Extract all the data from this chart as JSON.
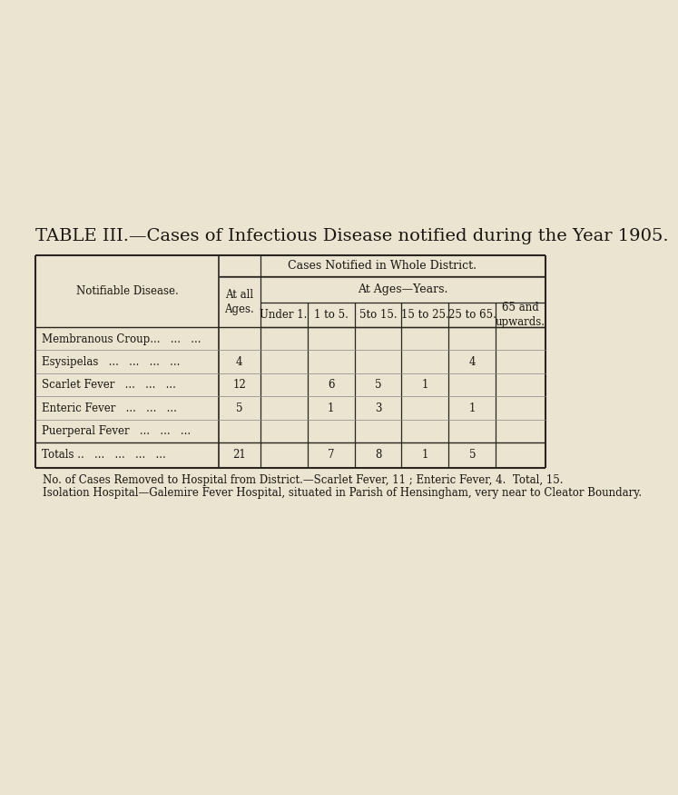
{
  "title": "TABLE III.—Cases of Infectious Disease notified during the Year 1905.",
  "title_fontsize": 14,
  "bg_color": "#EAE4D0",
  "header1": "Cases Notified in Whole District.",
  "header_disease": "Notifiable Disease.",
  "header_at_all": "At all\nAges.",
  "header_ages": "At Ages—Years.",
  "age_headers": [
    "Under 1.",
    "1 to 5.",
    "5to 15.",
    "15 to 25.",
    "25 to 65.",
    "65 and\nupwards."
  ],
  "diseases": [
    "Membranous Croup...",
    "Esysipelas",
    "Scarlet Fever",
    "Enteric Fever",
    "Puerperal Fever"
  ],
  "disease_dots": [
    "   ...   ...",
    "   ...   ...   ...   ...",
    "   ...   ...   ...",
    "   ...   ...   ...",
    "   ...   ...   ..."
  ],
  "at_all_ages": [
    "",
    "4",
    "12",
    "5",
    ""
  ],
  "cell_data": [
    [
      "",
      "",
      "",
      "",
      "",
      ""
    ],
    [
      "",
      "",
      "",
      "",
      "4",
      ""
    ],
    [
      "",
      "6",
      "5",
      "1",
      "",
      ""
    ],
    [
      "",
      "1",
      "3",
      "",
      "1",
      ""
    ],
    [
      "",
      "",
      "",
      "",
      "",
      ""
    ]
  ],
  "totals_label": "Totals ..",
  "totals_dots": "   ...   ...   ...   ...",
  "totals_all_ages": "21",
  "totals_row": [
    "",
    "7",
    "8",
    "1",
    "5",
    ""
  ],
  "footnote1": "No. of Cases Removed to Hospital from District.—Scarlet Fever, 11 ; Enteric Fever, 4.  Total, 15.",
  "footnote2": "Isolation Hospital—Galemire Fever Hospital, situated in Parish of Hensingham, very near to Cleator Boundary.",
  "footnote_fs": 8.5,
  "line_color": "#2a2520",
  "text_color": "#1a1510"
}
